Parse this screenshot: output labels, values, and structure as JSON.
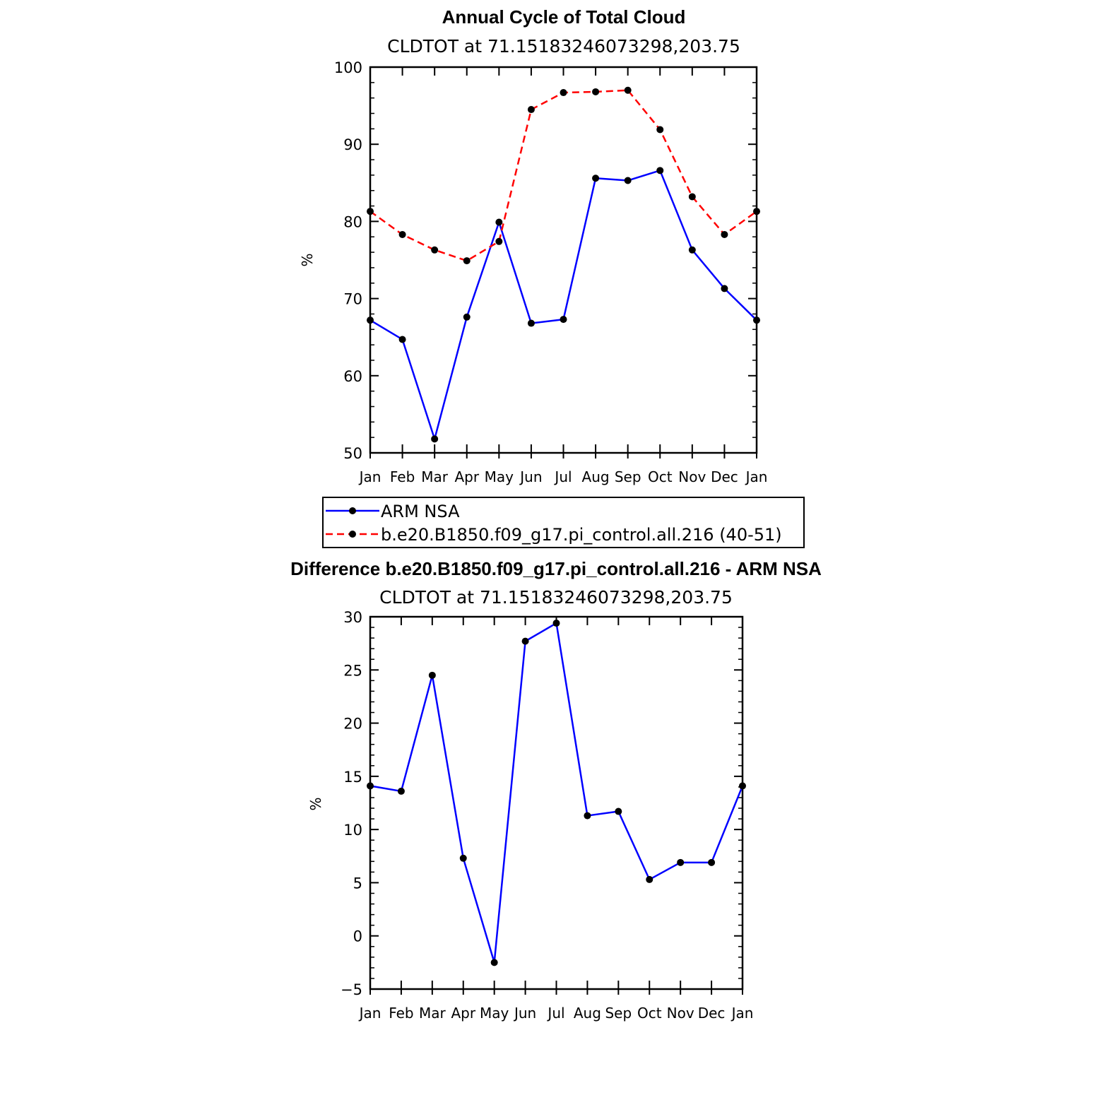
{
  "chart_data": [
    {
      "type": "line",
      "title": "Annual Cycle of Total Cloud",
      "subtitle": "CLDTOT at 71.15183246073298,203.75",
      "ylabel": "%",
      "xlabel": "",
      "categories": [
        "Jan",
        "Feb",
        "Mar",
        "Apr",
        "May",
        "Jun",
        "Jul",
        "Aug",
        "Sep",
        "Oct",
        "Nov",
        "Dec",
        "Jan"
      ],
      "ylim": [
        50,
        100
      ],
      "yticks": [
        50,
        60,
        70,
        80,
        90,
        100
      ],
      "series": [
        {
          "name": "ARM NSA",
          "color": "#0000ff",
          "style": "solid",
          "values": [
            67.2,
            64.7,
            51.8,
            67.6,
            79.9,
            66.8,
            67.3,
            85.6,
            85.3,
            86.6,
            76.3,
            71.3,
            67.2
          ]
        },
        {
          "name": "b.e20.B1850.f09_g17.pi_control.all.216 (40-51)",
          "color": "#ff0000",
          "style": "dashed",
          "values": [
            81.3,
            78.3,
            76.3,
            74.9,
            77.4,
            94.5,
            96.7,
            96.8,
            97.0,
            91.9,
            83.2,
            78.3,
            81.3
          ]
        }
      ],
      "legend": "below"
    },
    {
      "type": "line",
      "title": "Difference b.e20.B1850.f09_g17.pi_control.all.216 - ARM NSA",
      "subtitle": "CLDTOT at 71.15183246073298,203.75",
      "ylabel": "%",
      "xlabel": "",
      "categories": [
        "Jan",
        "Feb",
        "Mar",
        "Apr",
        "May",
        "Jun",
        "Jul",
        "Aug",
        "Sep",
        "Oct",
        "Nov",
        "Dec",
        "Jan"
      ],
      "ylim": [
        -5,
        30
      ],
      "yticks": [
        -5,
        0,
        5,
        10,
        15,
        20,
        25,
        30
      ],
      "series": [
        {
          "color": "#0000ff",
          "style": "solid",
          "values": [
            14.1,
            13.6,
            24.5,
            7.3,
            -2.5,
            27.7,
            29.4,
            11.3,
            11.7,
            5.3,
            6.9,
            6.9,
            14.1
          ]
        }
      ]
    }
  ]
}
